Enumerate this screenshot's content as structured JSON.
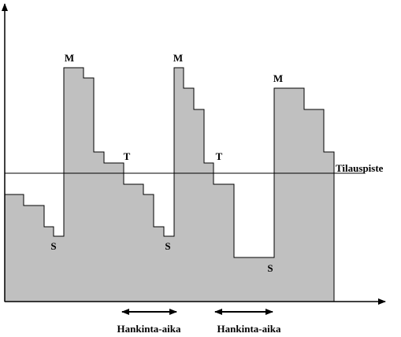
{
  "labels": {
    "max": [
      "M",
      "M",
      "M"
    ],
    "reorder_marks": [
      "T",
      "T"
    ],
    "safety": [
      "S",
      "S",
      "S"
    ],
    "reorder_point": "Tilauspiste",
    "lead_time": [
      "Hankinta-aika",
      "Hankinta-aika"
    ]
  }
}
